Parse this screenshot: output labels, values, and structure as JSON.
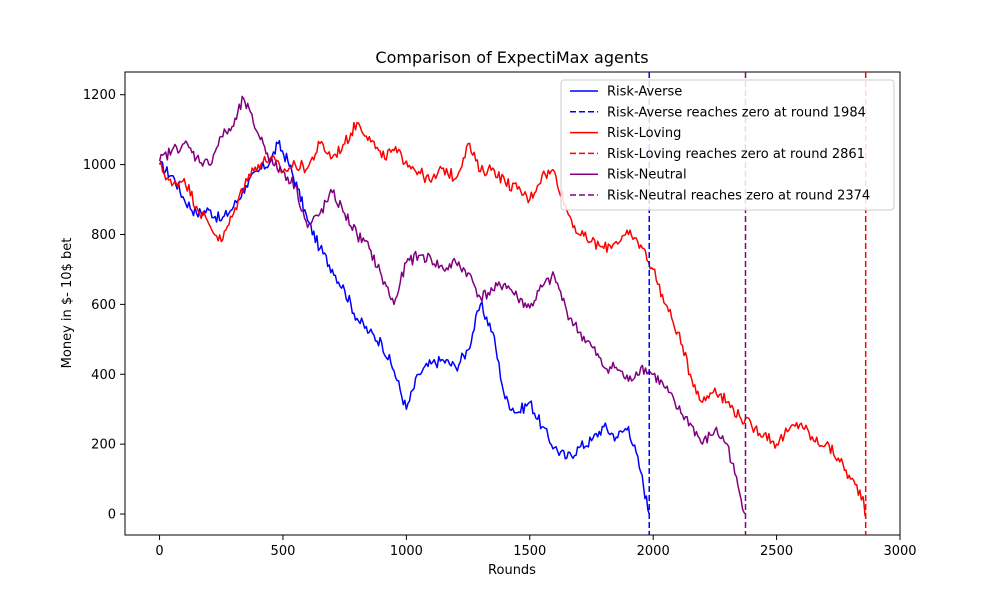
{
  "chart_data": {
    "type": "line",
    "title": "Comparison of ExpectiMax agents",
    "xlabel": "Rounds",
    "ylabel": "Money in $- 10$ bet",
    "xlim": [
      -140,
      3000
    ],
    "ylim": [
      -60,
      1265
    ],
    "x_ticks": [
      0,
      500,
      1000,
      1500,
      2000,
      2500,
      3000
    ],
    "y_ticks": [
      0,
      200,
      400,
      600,
      800,
      1000,
      1200
    ],
    "grid": false,
    "legend_position": "top-right",
    "legend": [
      {
        "label": "Risk-Averse",
        "color": "#0000ff",
        "style": "solid"
      },
      {
        "label": "Risk-Averse reaches zero at round 1984",
        "color": "#0000ff",
        "style": "dashed"
      },
      {
        "label": "Risk-Loving",
        "color": "#ff0000",
        "style": "solid"
      },
      {
        "label": "Risk-Loving reaches zero at round 2861",
        "color": "#ff0000",
        "style": "dashed"
      },
      {
        "label": "Risk-Neutral",
        "color": "#800080",
        "style": "solid"
      },
      {
        "label": "Risk-Neutral reaches zero at round 2374",
        "color": "#800080",
        "style": "dashed"
      }
    ],
    "series": [
      {
        "name": "Risk-Averse",
        "color": "#0000ff",
        "x": [
          0,
          60,
          100,
          150,
          200,
          250,
          300,
          350,
          400,
          450,
          480,
          520,
          560,
          600,
          650,
          700,
          750,
          800,
          850,
          900,
          950,
          1000,
          1050,
          1100,
          1150,
          1200,
          1250,
          1300,
          1350,
          1400,
          1450,
          1500,
          1550,
          1600,
          1650,
          1700,
          1750,
          1800,
          1850,
          1900,
          1950,
          1984
        ],
        "y": [
          1000,
          960,
          900,
          860,
          870,
          840,
          880,
          940,
          980,
          1010,
          1060,
          1010,
          930,
          840,
          760,
          700,
          640,
          560,
          520,
          490,
          410,
          300,
          400,
          430,
          440,
          420,
          470,
          600,
          520,
          330,
          290,
          320,
          250,
          190,
          160,
          190,
          210,
          250,
          220,
          250,
          120,
          0
        ]
      },
      {
        "name": "Risk-Loving",
        "color": "#ff0000",
        "x": [
          0,
          50,
          100,
          150,
          200,
          250,
          300,
          350,
          400,
          450,
          500,
          550,
          600,
          650,
          700,
          750,
          800,
          850,
          900,
          950,
          1000,
          1050,
          1100,
          1150,
          1200,
          1250,
          1300,
          1350,
          1400,
          1450,
          1500,
          1550,
          1600,
          1650,
          1700,
          1750,
          1800,
          1850,
          1900,
          1950,
          2000,
          2050,
          2100,
          2150,
          2200,
          2250,
          2300,
          2350,
          2400,
          2450,
          2500,
          2550,
          2600,
          2650,
          2700,
          2750,
          2800,
          2850,
          2861
        ],
        "y": [
          1000,
          940,
          960,
          880,
          830,
          780,
          860,
          960,
          1000,
          1020,
          980,
          1000,
          990,
          1060,
          1020,
          1060,
          1120,
          1080,
          1020,
          1040,
          1010,
          980,
          950,
          990,
          960,
          1060,
          980,
          990,
          950,
          930,
          900,
          970,
          980,
          870,
          800,
          780,
          760,
          780,
          800,
          770,
          700,
          600,
          520,
          400,
          320,
          360,
          320,
          280,
          250,
          230,
          200,
          240,
          260,
          210,
          200,
          160,
          100,
          50,
          0
        ]
      },
      {
        "name": "Risk-Neutral",
        "color": "#800080",
        "x": [
          0,
          50,
          100,
          150,
          200,
          250,
          300,
          340,
          380,
          420,
          460,
          500,
          550,
          600,
          650,
          700,
          750,
          800,
          850,
          900,
          950,
          1000,
          1050,
          1100,
          1150,
          1200,
          1250,
          1300,
          1350,
          1400,
          1450,
          1500,
          1550,
          1600,
          1650,
          1700,
          1750,
          1800,
          1850,
          1900,
          1950,
          2000,
          2050,
          2100,
          2150,
          2200,
          2250,
          2300,
          2350,
          2374
        ],
        "y": [
          1010,
          1040,
          1060,
          1020,
          1000,
          1080,
          1110,
          1190,
          1120,
          1060,
          1000,
          980,
          940,
          820,
          860,
          920,
          860,
          800,
          760,
          680,
          600,
          720,
          740,
          730,
          700,
          720,
          690,
          620,
          640,
          660,
          620,
          590,
          650,
          680,
          580,
          520,
          480,
          420,
          420,
          380,
          420,
          400,
          360,
          300,
          260,
          200,
          240,
          200,
          60,
          0
        ]
      }
    ],
    "vlines": [
      {
        "x": 1984,
        "color": "#0000ff",
        "label": "Risk-Averse reaches zero at round 1984"
      },
      {
        "x": 2861,
        "color": "#ff0000",
        "label": "Risk-Loving reaches zero at round 2861"
      },
      {
        "x": 2374,
        "color": "#800080",
        "label": "Risk-Neutral reaches zero at round 2374"
      }
    ]
  }
}
